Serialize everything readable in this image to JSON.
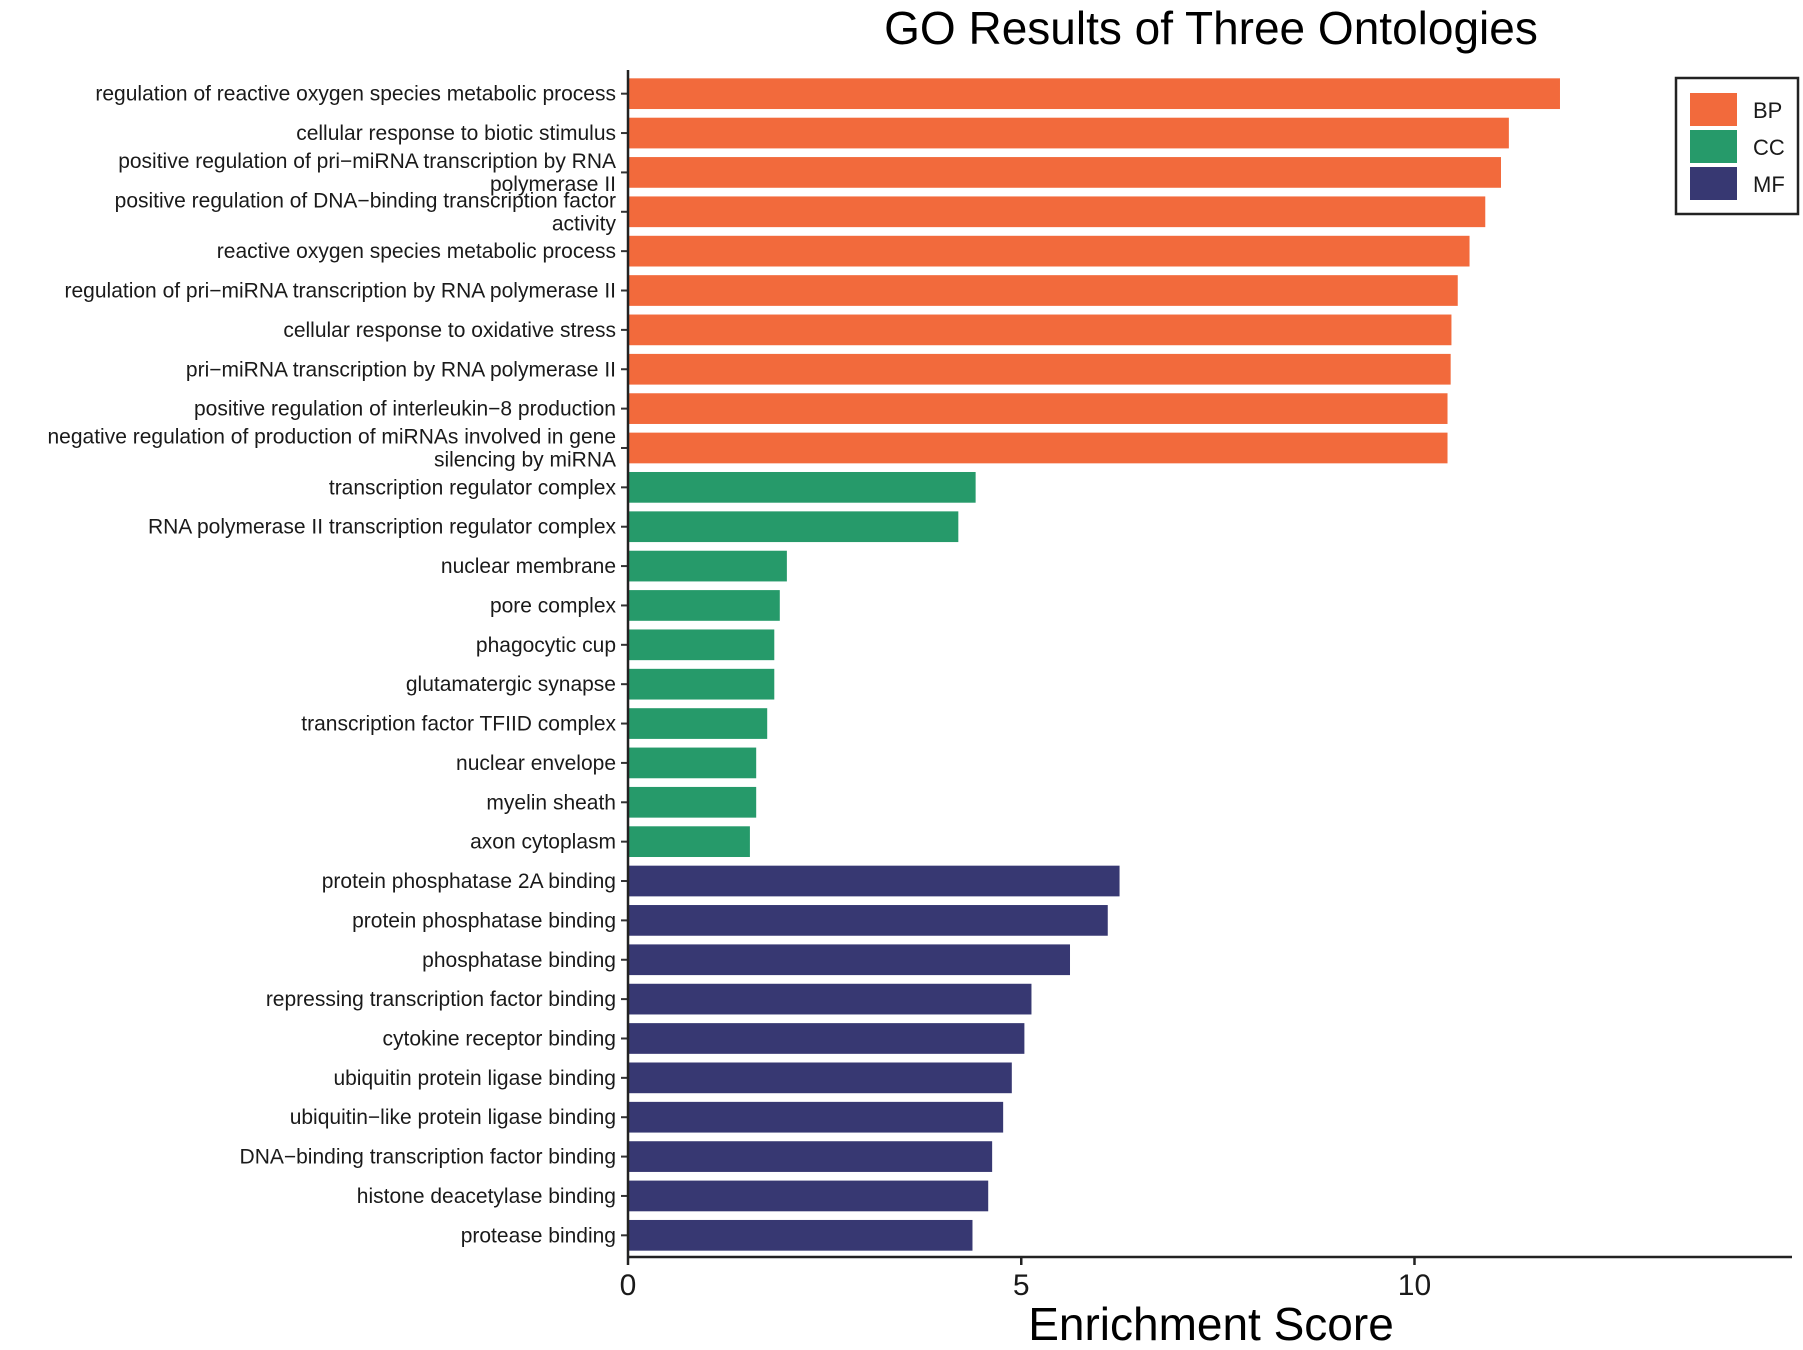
{
  "chart_data": {
    "type": "bar",
    "orientation": "horizontal",
    "title": "GO Results of Three Ontologies",
    "xlabel": "Enrichment Score",
    "ylabel": "",
    "xlim": [
      0,
      14.8
    ],
    "xticks": [
      0,
      5,
      10
    ],
    "grid": false,
    "legend_position": "top-right",
    "series": [
      {
        "name": "BP",
        "color": "#F26A3C"
      },
      {
        "name": "CC",
        "color": "#269A6A"
      },
      {
        "name": "MF",
        "color": "#373872"
      }
    ],
    "categories": [
      {
        "label": "regulation of reactive oxygen species metabolic process",
        "value": 11.85,
        "ontology": "BP"
      },
      {
        "label": "cellular response to biotic stimulus",
        "value": 11.2,
        "ontology": "BP"
      },
      {
        "label": "positive regulation of pri−miRNA transcription by RNA polymerase II",
        "lines": [
          "positive regulation of pri−miRNA transcription by RNA",
          "polymerase II"
        ],
        "value": 11.1,
        "ontology": "BP"
      },
      {
        "label": "positive regulation of DNA−binding transcription factor activity",
        "lines": [
          "positive regulation of DNA−binding transcription factor",
          "activity"
        ],
        "value": 10.9,
        "ontology": "BP"
      },
      {
        "label": "reactive oxygen species metabolic process",
        "value": 10.7,
        "ontology": "BP"
      },
      {
        "label": "regulation of pri−miRNA transcription by RNA polymerase II",
        "value": 10.55,
        "ontology": "BP"
      },
      {
        "label": "cellular response to oxidative stress",
        "value": 10.47,
        "ontology": "BP"
      },
      {
        "label": "pri−miRNA transcription by RNA polymerase II",
        "value": 10.46,
        "ontology": "BP"
      },
      {
        "label": "positive regulation of interleukin−8 production",
        "value": 10.42,
        "ontology": "BP"
      },
      {
        "label": "negative regulation of production of miRNAs involved in gene silencing by miRNA",
        "lines": [
          "negative regulation of production of miRNAs involved in gene",
          "silencing by miRNA"
        ],
        "value": 10.42,
        "ontology": "BP"
      },
      {
        "label": "transcription regulator complex",
        "value": 4.42,
        "ontology": "CC"
      },
      {
        "label": "RNA polymerase II transcription regulator complex",
        "value": 4.2,
        "ontology": "CC"
      },
      {
        "label": "nuclear membrane",
        "value": 2.02,
        "ontology": "CC"
      },
      {
        "label": "pore complex",
        "value": 1.93,
        "ontology": "CC"
      },
      {
        "label": "phagocytic cup",
        "value": 1.86,
        "ontology": "CC"
      },
      {
        "label": "glutamatergic synapse",
        "value": 1.86,
        "ontology": "CC"
      },
      {
        "label": "transcription factor TFIID complex",
        "value": 1.77,
        "ontology": "CC"
      },
      {
        "label": "nuclear envelope",
        "value": 1.63,
        "ontology": "CC"
      },
      {
        "label": "myelin sheath",
        "value": 1.63,
        "ontology": "CC"
      },
      {
        "label": "axon cytoplasm",
        "value": 1.55,
        "ontology": "CC"
      },
      {
        "label": "protein phosphatase 2A binding",
        "value": 6.25,
        "ontology": "MF"
      },
      {
        "label": "protein phosphatase binding",
        "value": 6.1,
        "ontology": "MF"
      },
      {
        "label": "phosphatase binding",
        "value": 5.62,
        "ontology": "MF"
      },
      {
        "label": "repressing transcription factor binding",
        "value": 5.13,
        "ontology": "MF"
      },
      {
        "label": "cytokine receptor binding",
        "value": 5.04,
        "ontology": "MF"
      },
      {
        "label": "ubiquitin protein ligase binding",
        "value": 4.88,
        "ontology": "MF"
      },
      {
        "label": "ubiquitin−like protein ligase binding",
        "value": 4.77,
        "ontology": "MF"
      },
      {
        "label": "DNA−binding transcription factor binding",
        "value": 4.63,
        "ontology": "MF"
      },
      {
        "label": "histone deacetylase binding",
        "value": 4.58,
        "ontology": "MF"
      },
      {
        "label": "protease binding",
        "value": 4.38,
        "ontology": "MF"
      }
    ]
  }
}
